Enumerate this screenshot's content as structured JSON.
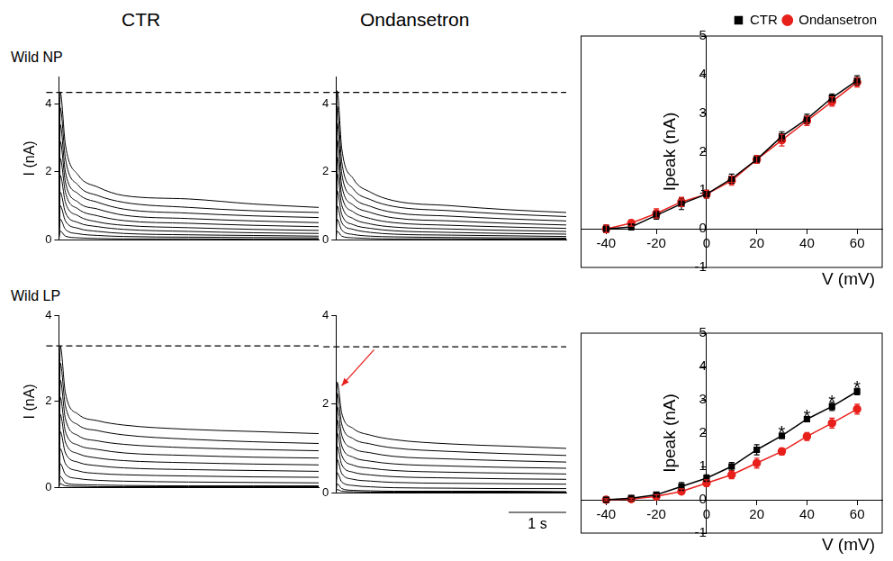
{
  "column_titles": [
    "CTR",
    "Ondansetron"
  ],
  "row_labels": [
    "Wild NP",
    "Wild LP"
  ],
  "chart_data": [
    {
      "type": "line",
      "y_label": "I (nA)",
      "color": "#000000",
      "x": [
        0,
        0.02,
        0.1,
        0.3,
        0.6,
        1.0,
        2.0,
        3.0,
        4.0
      ],
      "series": [
        {
          "values": [
            0,
            4.35,
            2.8,
            1.9,
            1.55,
            1.3,
            1.2,
            1.05,
            0.95
          ]
        },
        {
          "values": [
            0,
            3.9,
            2.4,
            1.6,
            1.3,
            1.1,
            0.95,
            0.85,
            0.8
          ]
        },
        {
          "values": [
            0,
            3.4,
            2.0,
            1.35,
            1.1,
            0.9,
            0.78,
            0.7,
            0.65
          ]
        },
        {
          "values": [
            0,
            2.9,
            1.7,
            1.1,
            0.9,
            0.72,
            0.62,
            0.55,
            0.5
          ]
        },
        {
          "values": [
            0,
            2.4,
            1.4,
            0.9,
            0.7,
            0.56,
            0.48,
            0.42,
            0.38
          ]
        },
        {
          "values": [
            0,
            1.9,
            1.1,
            0.7,
            0.52,
            0.42,
            0.35,
            0.3,
            0.27
          ]
        },
        {
          "values": [
            0,
            1.4,
            0.8,
            0.5,
            0.38,
            0.3,
            0.24,
            0.2,
            0.18
          ]
        },
        {
          "values": [
            0,
            1.0,
            0.55,
            0.33,
            0.24,
            0.18,
            0.14,
            0.12,
            0.1
          ]
        },
        {
          "values": [
            0,
            0.6,
            0.3,
            0.17,
            0.12,
            0.09,
            0.07,
            0.06,
            0.05
          ]
        },
        {
          "values": [
            0,
            0.25,
            0.1,
            0.05,
            0.03,
            0.02,
            0.02,
            0.01,
            0.01
          ]
        }
      ],
      "xlim": [
        0,
        4
      ],
      "ylim": [
        0,
        4.8
      ],
      "yticks": [
        0,
        2,
        4
      ],
      "tick_labels": "y",
      "reference_line": 4.35
    },
    {
      "type": "line",
      "color": "#000000",
      "x": [
        0,
        0.02,
        0.1,
        0.3,
        0.6,
        1.0,
        2.0,
        3.0,
        4.0
      ],
      "series": [
        {
          "values": [
            0,
            4.4,
            2.7,
            1.8,
            1.4,
            1.15,
            1.0,
            0.88,
            0.8
          ]
        },
        {
          "values": [
            0,
            3.95,
            2.3,
            1.5,
            1.18,
            0.98,
            0.85,
            0.75,
            0.68
          ]
        },
        {
          "values": [
            0,
            3.45,
            1.95,
            1.25,
            0.98,
            0.8,
            0.69,
            0.61,
            0.55
          ]
        },
        {
          "values": [
            0,
            2.95,
            1.6,
            1.02,
            0.8,
            0.64,
            0.55,
            0.48,
            0.43
          ]
        },
        {
          "values": [
            0,
            2.45,
            1.3,
            0.82,
            0.62,
            0.5,
            0.42,
            0.37,
            0.33
          ]
        },
        {
          "values": [
            0,
            1.95,
            1.02,
            0.62,
            0.46,
            0.37,
            0.31,
            0.27,
            0.24
          ]
        },
        {
          "values": [
            0,
            1.45,
            0.74,
            0.44,
            0.33,
            0.26,
            0.21,
            0.18,
            0.16
          ]
        },
        {
          "values": [
            0,
            1.0,
            0.5,
            0.3,
            0.21,
            0.16,
            0.13,
            0.11,
            0.09
          ]
        },
        {
          "values": [
            0,
            0.6,
            0.28,
            0.15,
            0.1,
            0.08,
            0.06,
            0.05,
            0.04
          ]
        },
        {
          "values": [
            0,
            0.25,
            0.1,
            0.05,
            0.03,
            0.02,
            0.02,
            0.01,
            0.01
          ]
        }
      ],
      "xlim": [
        0,
        4
      ],
      "ylim": [
        0,
        4.8
      ],
      "yticks": [
        0,
        2,
        4
      ],
      "tick_labels": "y",
      "reference_line": 4.35
    },
    {
      "type": "line",
      "x_label": "V (mV)",
      "y_label": "Ipeak (nA)",
      "x": [
        -40,
        -30,
        -20,
        -10,
        0,
        10,
        20,
        30,
        40,
        50,
        60
      ],
      "series": [
        {
          "name": "CTR",
          "color": "#000000",
          "marker": "square",
          "values": [
            0.0,
            0.05,
            0.35,
            0.65,
            0.9,
            1.3,
            1.8,
            2.4,
            2.85,
            3.4,
            3.85
          ],
          "errors": [
            0.1,
            0.08,
            0.1,
            0.15,
            0.1,
            0.12,
            0.1,
            0.12,
            0.12,
            0.1,
            0.12
          ]
        },
        {
          "name": "Ondansetron",
          "color": "#e8201c",
          "marker": "circle",
          "values": [
            0.0,
            0.15,
            0.4,
            0.7,
            0.9,
            1.25,
            1.8,
            2.3,
            2.8,
            3.3,
            3.8
          ],
          "errors": [
            0.1,
            0.08,
            0.12,
            0.12,
            0.1,
            0.12,
            0.1,
            0.15,
            0.12,
            0.12,
            0.12
          ]
        }
      ],
      "xlim": [
        -50,
        70
      ],
      "xticks": [
        -40,
        -20,
        0,
        20,
        40,
        60
      ],
      "ylim": [
        -1,
        5
      ],
      "yticks": [
        -1,
        0,
        1,
        2,
        3,
        4,
        5
      ],
      "legend": "top right"
    },
    {
      "type": "line",
      "y_label": "I (nA)",
      "color": "#000000",
      "x": [
        0,
        0.02,
        0.1,
        0.3,
        0.6,
        1.0,
        2.0,
        3.0,
        4.0
      ],
      "series": [
        {
          "values": [
            0,
            3.3,
            2.2,
            1.7,
            1.55,
            1.45,
            1.35,
            1.3,
            1.25
          ]
        },
        {
          "values": [
            0,
            2.9,
            1.9,
            1.45,
            1.32,
            1.22,
            1.12,
            1.06,
            1.02
          ]
        },
        {
          "values": [
            0,
            2.5,
            1.6,
            1.2,
            1.08,
            1.0,
            0.92,
            0.88,
            0.85
          ]
        },
        {
          "values": [
            0,
            2.1,
            1.3,
            0.98,
            0.88,
            0.8,
            0.74,
            0.7,
            0.68
          ]
        },
        {
          "values": [
            0,
            1.7,
            1.05,
            0.78,
            0.68,
            0.62,
            0.57,
            0.54,
            0.52
          ]
        },
        {
          "values": [
            0,
            1.3,
            0.8,
            0.58,
            0.5,
            0.45,
            0.41,
            0.39,
            0.37
          ]
        },
        {
          "values": [
            0,
            0.9,
            0.55,
            0.38,
            0.32,
            0.29,
            0.26,
            0.24,
            0.23
          ]
        },
        {
          "values": [
            0,
            0.55,
            0.3,
            0.2,
            0.16,
            0.14,
            0.12,
            0.11,
            0.1
          ]
        },
        {
          "values": [
            0,
            0.25,
            0.1,
            0.06,
            0.05,
            0.04,
            0.03,
            0.03,
            0.03
          ]
        },
        {
          "values": [
            0,
            0.08,
            0.03,
            0.02,
            0.01,
            0.01,
            0.01,
            0.01,
            0.01
          ]
        }
      ],
      "xlim": [
        0,
        4
      ],
      "ylim": [
        0,
        4
      ],
      "yticks": [
        0,
        2,
        4
      ],
      "tick_labels": "y",
      "reference_line": 3.3
    },
    {
      "type": "line",
      "color": "#000000",
      "x": [
        0,
        0.02,
        0.1,
        0.3,
        0.6,
        1.0,
        2.0,
        3.0,
        4.0
      ],
      "series": [
        {
          "values": [
            0,
            2.5,
            1.8,
            1.45,
            1.3,
            1.2,
            1.1,
            1.05,
            1.0
          ]
        },
        {
          "values": [
            0,
            2.25,
            1.55,
            1.22,
            1.1,
            1.01,
            0.93,
            0.88,
            0.84
          ]
        },
        {
          "values": [
            0,
            1.95,
            1.3,
            1.0,
            0.9,
            0.82,
            0.76,
            0.72,
            0.69
          ]
        },
        {
          "values": [
            0,
            1.65,
            1.06,
            0.8,
            0.71,
            0.65,
            0.6,
            0.57,
            0.55
          ]
        },
        {
          "values": [
            0,
            1.35,
            0.84,
            0.62,
            0.55,
            0.5,
            0.46,
            0.44,
            0.42
          ]
        },
        {
          "values": [
            0,
            1.05,
            0.63,
            0.46,
            0.4,
            0.36,
            0.33,
            0.31,
            0.3
          ]
        },
        {
          "values": [
            0,
            0.75,
            0.43,
            0.3,
            0.26,
            0.23,
            0.21,
            0.2,
            0.19
          ]
        },
        {
          "values": [
            0,
            0.45,
            0.24,
            0.16,
            0.13,
            0.11,
            0.1,
            0.09,
            0.09
          ]
        },
        {
          "values": [
            0,
            0.2,
            0.09,
            0.05,
            0.04,
            0.03,
            0.03,
            0.03,
            0.02
          ]
        },
        {
          "values": [
            0,
            0.07,
            0.03,
            0.02,
            0.01,
            0.01,
            0.01,
            0.01,
            0.01
          ]
        }
      ],
      "xlim": [
        0,
        4
      ],
      "ylim": [
        0,
        4
      ],
      "yticks": [
        0,
        2,
        4
      ],
      "tick_labels": "y",
      "reference_line": 3.3,
      "scale_bar": {
        "value": 1,
        "label": "1 s"
      }
    },
    {
      "type": "line",
      "x_label": "V (mV)",
      "y_label": "Ipeak (nA)",
      "x": [
        -40,
        -30,
        -20,
        -10,
        0,
        10,
        20,
        30,
        40,
        50,
        60
      ],
      "series": [
        {
          "name": "CTR",
          "color": "#000000",
          "marker": "square",
          "values": [
            0.0,
            0.05,
            0.15,
            0.4,
            0.65,
            1.0,
            1.5,
            1.92,
            2.42,
            2.8,
            3.25
          ],
          "errors": [
            0.03,
            0.05,
            0.05,
            0.12,
            0.1,
            0.12,
            0.15,
            0.08,
            0.08,
            0.12,
            0.1
          ]
        },
        {
          "name": "Ondansetron",
          "color": "#e8201c",
          "marker": "circle",
          "values": [
            0.0,
            0.02,
            0.1,
            0.25,
            0.5,
            0.75,
            1.1,
            1.45,
            1.9,
            2.3,
            2.72
          ],
          "errors": [
            0.03,
            0.03,
            0.05,
            0.08,
            0.1,
            0.12,
            0.15,
            0.1,
            0.12,
            0.15,
            0.15
          ]
        }
      ],
      "xlim": [
        -50,
        70
      ],
      "xticks": [
        -40,
        -20,
        0,
        20,
        40,
        60
      ],
      "ylim": [
        -1,
        5
      ],
      "yticks": [
        -1,
        0,
        1,
        2,
        3,
        4,
        5
      ],
      "annotations": [
        {
          "x": 30,
          "label": "*"
        },
        {
          "x": 40,
          "label": "*"
        },
        {
          "x": 50,
          "label": "*"
        },
        {
          "x": 60,
          "label": "*"
        }
      ]
    }
  ]
}
